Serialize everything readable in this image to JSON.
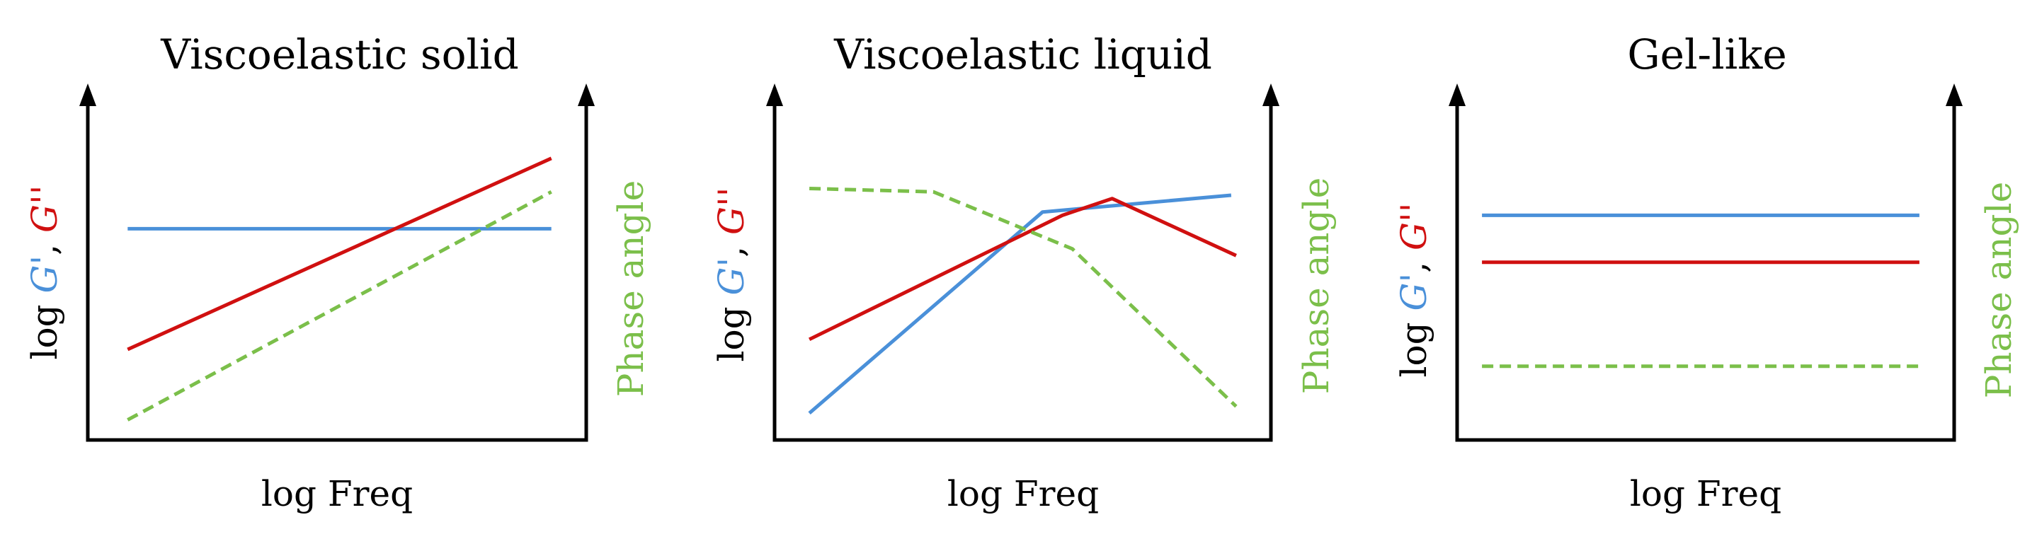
{
  "colors": {
    "storage_modulus": "#4a90d9",
    "loss_modulus": "#d01010",
    "phase_angle": "#7bbf4a",
    "axis": "#000000"
  },
  "chart_data": [
    {
      "type": "line",
      "title": "Viscoelastic solid",
      "xlabel": "log Freq",
      "ylabel_left": {
        "prefix": "log ",
        "g_prime": "G'",
        "sep": ", ",
        "g_double_prime": "G''"
      },
      "ylabel_right": "Phase angle",
      "xlim": [
        0,
        10
      ],
      "ylim": [
        0,
        10
      ],
      "grid": false,
      "series": [
        {
          "name": "G'",
          "style": "solid",
          "color": "#4a90d9",
          "x": [
            0.8,
            9.3
          ],
          "y": [
            6.3,
            6.3
          ]
        },
        {
          "name": "G''",
          "style": "solid",
          "color": "#d01010",
          "x": [
            0.8,
            9.3
          ],
          "y": [
            2.7,
            8.4
          ]
        },
        {
          "name": "Phase angle",
          "style": "dashed",
          "color": "#7bbf4a",
          "x": [
            0.8,
            9.3
          ],
          "y": [
            0.6,
            7.4
          ]
        }
      ]
    },
    {
      "type": "line",
      "title": "Viscoelastic liquid",
      "xlabel": "log Freq",
      "ylabel_left": {
        "prefix": "log ",
        "g_prime": "G'",
        "sep": ", ",
        "g_double_prime": "G''"
      },
      "ylabel_right": "Phase angle",
      "xlim": [
        0,
        10
      ],
      "ylim": [
        0,
        10
      ],
      "grid": false,
      "series": [
        {
          "name": "G'",
          "style": "solid",
          "color": "#4a90d9",
          "x": [
            0.7,
            5.4,
            9.2
          ],
          "y": [
            0.8,
            6.8,
            7.3
          ]
        },
        {
          "name": "G''",
          "style": "solid",
          "color": "#d01010",
          "x": [
            0.7,
            5.8,
            6.8,
            9.3
          ],
          "y": [
            3.0,
            6.7,
            7.2,
            5.5
          ]
        },
        {
          "name": "Phase angle",
          "style": "dashed",
          "color": "#7bbf4a",
          "x": [
            0.7,
            3.2,
            6.0,
            9.3
          ],
          "y": [
            7.5,
            7.4,
            5.7,
            1.0
          ]
        }
      ]
    },
    {
      "type": "line",
      "title": "Gel-like",
      "xlabel": "log Freq",
      "ylabel_left": {
        "prefix": "log ",
        "g_prime": "G'",
        "sep": ", ",
        "g_double_prime": "G''"
      },
      "ylabel_right": "Phase angle",
      "xlim": [
        0,
        10
      ],
      "ylim": [
        0,
        10
      ],
      "grid": false,
      "series": [
        {
          "name": "G'",
          "style": "solid",
          "color": "#4a90d9",
          "x": [
            0.5,
            9.3
          ],
          "y": [
            6.7,
            6.7
          ]
        },
        {
          "name": "G''",
          "style": "solid",
          "color": "#d01010",
          "x": [
            0.5,
            9.3
          ],
          "y": [
            5.3,
            5.3
          ]
        },
        {
          "name": "Phase angle",
          "style": "dashed",
          "color": "#7bbf4a",
          "x": [
            0.5,
            9.3
          ],
          "y": [
            2.2,
            2.2
          ]
        }
      ]
    }
  ]
}
